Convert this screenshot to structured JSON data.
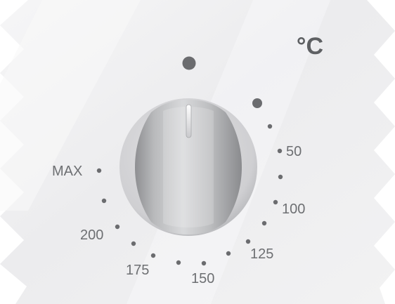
{
  "dial": {
    "unit": "°C",
    "labels": {
      "l50": "50",
      "l100": "100",
      "l125": "125",
      "l150": "150",
      "l175": "175",
      "l200": "200",
      "max": "MAX"
    }
  },
  "colors": {
    "panel": "#eeeeef",
    "panel_shadow": "#dcdcde",
    "dot": "#6b6c6f",
    "label": "#6d6f72"
  },
  "icons": {
    "off_indicator": "filled-circle",
    "knob": "rotary-knob"
  }
}
